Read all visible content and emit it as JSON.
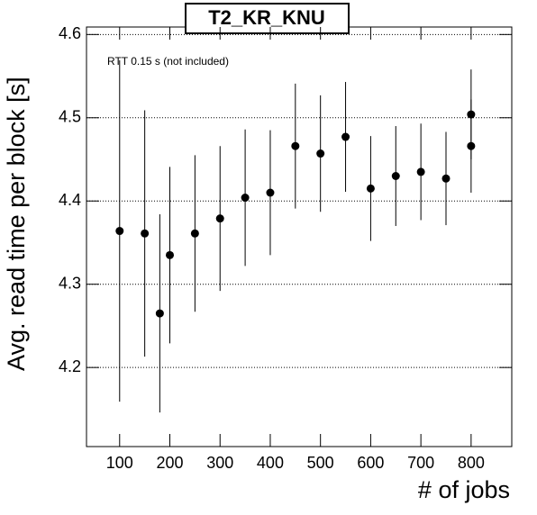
{
  "chart_data": {
    "type": "scatter",
    "title": "T2_KR_KNU",
    "annotation": "RTT 0.15 s (not included)",
    "xlabel": "# of jobs",
    "ylabel": "Avg. read time per block [s]",
    "x": [
      100,
      150,
      180,
      200,
      250,
      300,
      350,
      400,
      450,
      500,
      550,
      600,
      650,
      700,
      750,
      800,
      800
    ],
    "values": [
      4.364,
      4.361,
      4.265,
      4.335,
      4.361,
      4.379,
      4.404,
      4.41,
      4.466,
      4.457,
      4.477,
      4.415,
      4.43,
      4.435,
      4.427,
      4.504,
      4.466
    ],
    "errors": [
      0.205,
      0.148,
      0.119,
      0.106,
      0.094,
      0.087,
      0.082,
      0.075,
      0.075,
      0.07,
      0.066,
      0.063,
      0.06,
      0.058,
      0.056,
      0.054,
      0.056
    ],
    "color": "#000000",
    "xlim": [
      34,
      881
    ],
    "xticks": [
      100,
      200,
      300,
      400,
      500,
      600,
      700,
      800
    ],
    "ylim": [
      4.105,
      4.609
    ],
    "yticks": [
      4.2,
      4.3,
      4.4,
      4.5,
      4.6
    ],
    "grid": "y"
  }
}
